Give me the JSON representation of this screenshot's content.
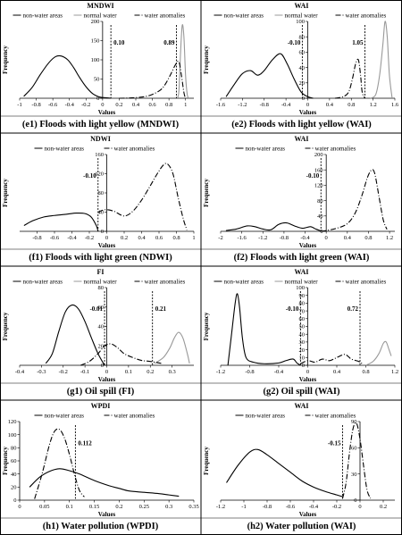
{
  "chart_data": [
    {
      "type": "line",
      "title": "MNDWI",
      "xlabel": "Values",
      "ylabel": "Frequency",
      "xlim": [
        -1,
        1.1
      ],
      "ylim": [
        0,
        200
      ],
      "xticks": [
        -1,
        -0.8,
        -0.6,
        -0.4,
        -0.2,
        0,
        0.2,
        0.4,
        0.6,
        0.8,
        1
      ],
      "yticks": [
        0,
        50,
        100,
        150,
        200
      ],
      "legend": [
        "non-water areas",
        "normal water",
        "water anomalies"
      ],
      "series": [
        {
          "name": "non-water areas",
          "style": "solid",
          "x": [
            -0.95,
            -0.85,
            -0.75,
            -0.65,
            -0.57,
            -0.5,
            -0.42,
            -0.35,
            -0.28,
            -0.2,
            -0.12,
            -0.05,
            0,
            0.05,
            0.1
          ],
          "y": [
            5,
            28,
            62,
            92,
            108,
            110,
            100,
            80,
            55,
            30,
            12,
            4,
            2,
            1,
            0
          ]
        },
        {
          "name": "normal water",
          "style": "solid",
          "color": "#999999",
          "x": [
            0.9,
            0.92,
            0.94,
            0.96,
            0.98,
            1.0,
            1.02,
            1.04
          ],
          "y": [
            0,
            20,
            120,
            190,
            160,
            60,
            10,
            0
          ]
        },
        {
          "name": "water anomalies",
          "style": "dashdot",
          "x": [
            0.2,
            0.35,
            0.5,
            0.6,
            0.7,
            0.76,
            0.82,
            0.88,
            0.92,
            0.95,
            0.98,
            1.0
          ],
          "y": [
            0,
            1,
            4,
            10,
            22,
            38,
            62,
            88,
            95,
            60,
            15,
            0
          ]
        }
      ],
      "annotations": [
        {
          "text": "0.10",
          "x": 0.1,
          "side": "right"
        },
        {
          "text": "0.89",
          "x": 0.89,
          "side": "left"
        }
      ],
      "caption": "(e1) Floods with light yellow (MNDWI)"
    },
    {
      "type": "line",
      "title": "WAI",
      "xlabel": "Values",
      "ylabel": "Frequency",
      "xlim": [
        -1.6,
        1.6
      ],
      "ylim": [
        0,
        100
      ],
      "xticks": [
        -1.6,
        -1.2,
        -0.8,
        -0.4,
        0,
        0.4,
        0.8,
        1.2,
        1.6
      ],
      "yticks": [
        0,
        20,
        40,
        60,
        80,
        100
      ],
      "legend": [
        "non-water areas",
        "normal water",
        "water anomalies"
      ],
      "series": [
        {
          "name": "non-water areas",
          "style": "solid",
          "x": [
            -1.5,
            -1.35,
            -1.2,
            -1.05,
            -0.92,
            -0.8,
            -0.65,
            -0.5,
            -0.38,
            -0.25,
            -0.12,
            0,
            0.1
          ],
          "y": [
            2,
            18,
            32,
            36,
            30,
            36,
            50,
            58,
            45,
            25,
            8,
            2,
            0
          ]
        },
        {
          "name": "normal water",
          "style": "solid",
          "color": "#999999",
          "x": [
            1.15,
            1.25,
            1.32,
            1.38,
            1.42,
            1.46,
            1.5,
            1.55
          ],
          "y": [
            0,
            5,
            30,
            70,
            100,
            80,
            30,
            0
          ]
        },
        {
          "name": "water anomalies",
          "style": "dashdot",
          "x": [
            0.5,
            0.65,
            0.75,
            0.82,
            0.88,
            0.93,
            0.97,
            1.0,
            1.05
          ],
          "y": [
            0,
            2,
            8,
            25,
            45,
            50,
            30,
            8,
            0
          ]
        }
      ],
      "annotations": [
        {
          "text": "-0.10",
          "x": -0.1,
          "side": "left"
        },
        {
          "text": "1.05",
          "x": 1.05,
          "side": "left"
        }
      ],
      "caption": "(e2) Floods with light yellow (WAI)"
    },
    {
      "type": "line",
      "title": "NDWI",
      "xlabel": "Values",
      "ylabel": "Frequency",
      "xlim": [
        -1,
        1
      ],
      "ylim": [
        0,
        160
      ],
      "xticks": [
        -0.8,
        -0.6,
        -0.4,
        -0.2,
        0,
        0.2,
        0.4,
        0.6,
        0.8,
        1
      ],
      "yticks": [
        0,
        40,
        80,
        120,
        160
      ],
      "legend": [
        "non-water areas",
        "water anomalies"
      ],
      "series": [
        {
          "name": "non-water areas",
          "style": "solid",
          "x": [
            -0.95,
            -0.85,
            -0.72,
            -0.6,
            -0.45,
            -0.35,
            -0.25,
            -0.18,
            -0.12,
            -0.1
          ],
          "y": [
            12,
            22,
            30,
            33,
            36,
            38,
            37,
            30,
            12,
            0
          ]
        },
        {
          "name": "water anomalies",
          "style": "dashdot",
          "x": [
            -0.1,
            -0.02,
            0.08,
            0.2,
            0.3,
            0.4,
            0.5,
            0.58,
            0.65,
            0.7,
            0.76,
            0.82,
            0.88,
            0.92
          ],
          "y": [
            40,
            45,
            42,
            32,
            42,
            65,
            95,
            120,
            138,
            140,
            120,
            70,
            25,
            3
          ]
        }
      ],
      "annotations": [
        {
          "text": "-0.10",
          "x": -0.1,
          "side": "left"
        }
      ],
      "caption": "(f1) Floods with light green (NDWI)"
    },
    {
      "type": "line",
      "title": "WAI",
      "xlabel": "Values",
      "ylabel": "Frequency",
      "xlim": [
        -2,
        1.3
      ],
      "ylim": [
        0,
        200
      ],
      "xticks": [
        -2,
        -1.6,
        -1.2,
        -0.8,
        -0.4,
        0,
        0.4,
        0.8,
        1.2
      ],
      "yticks": [
        0,
        40,
        80,
        120,
        160,
        200
      ],
      "legend": [
        "non-water areas",
        "water anomalies"
      ],
      "series": [
        {
          "name": "non-water areas",
          "style": "solid",
          "x": [
            -1.9,
            -1.7,
            -1.5,
            -1.35,
            -1.2,
            -1.05,
            -0.9,
            -0.75,
            -0.6,
            -0.45,
            -0.3,
            -0.2,
            -0.12,
            -0.1
          ],
          "y": [
            2,
            6,
            14,
            12,
            6,
            4,
            18,
            22,
            14,
            8,
            12,
            6,
            2,
            0
          ]
        },
        {
          "name": "water anomalies",
          "style": "dashdot",
          "x": [
            -0.1,
            0.0,
            0.2,
            0.4,
            0.55,
            0.68,
            0.78,
            0.86,
            0.92,
            1.0,
            1.08,
            1.15
          ],
          "y": [
            0,
            2,
            8,
            20,
            48,
            95,
            140,
            160,
            150,
            90,
            30,
            5
          ]
        }
      ],
      "annotations": [
        {
          "text": "-0.10",
          "x": -0.1,
          "side": "left"
        }
      ],
      "caption": "(f2) Floods with light green (WAI)"
    },
    {
      "type": "line",
      "title": "FI",
      "xlabel": "Values",
      "ylabel": "Frequency",
      "xlim": [
        -0.4,
        0.4
      ],
      "ylim": [
        0,
        80
      ],
      "xticks": [
        -0.4,
        -0.3,
        -0.2,
        -0.1,
        0,
        0.1,
        0.2,
        0.3
      ],
      "yticks": [
        0,
        20,
        40,
        60,
        80
      ],
      "legend": [
        "non-water areas",
        "normal water",
        "water anomalies"
      ],
      "series": [
        {
          "name": "non-water areas",
          "style": "solid",
          "x": [
            -0.28,
            -0.25,
            -0.22,
            -0.19,
            -0.16,
            -0.13,
            -0.1,
            -0.07,
            -0.04,
            -0.01
          ],
          "y": [
            2,
            12,
            35,
            55,
            62,
            58,
            45,
            28,
            12,
            0
          ]
        },
        {
          "name": "normal water",
          "style": "solid",
          "color": "#999999",
          "x": [
            0.22,
            0.26,
            0.29,
            0.31,
            0.33,
            0.35,
            0.37,
            0.38
          ],
          "y": [
            2,
            8,
            18,
            28,
            34,
            28,
            12,
            2
          ]
        },
        {
          "name": "water anomalies",
          "style": "dashdot",
          "x": [
            -0.12,
            -0.08,
            -0.04,
            -0.01,
            0.02,
            0.05,
            0.08,
            0.12,
            0.16,
            0.2,
            0.25
          ],
          "y": [
            0,
            4,
            12,
            20,
            22,
            18,
            12,
            8,
            5,
            4,
            2
          ]
        }
      ],
      "annotations": [
        {
          "text": "-0.01",
          "x": -0.01,
          "side": "left"
        },
        {
          "text": "0.21",
          "x": 0.21,
          "side": "right"
        }
      ],
      "caption": "(g1) Oil spill (FI)"
    },
    {
      "type": "line",
      "title": "WAI",
      "xlabel": "Values",
      "ylabel": "Frequency",
      "xlim": [
        -1.2,
        1.2
      ],
      "ylim": [
        0,
        100
      ],
      "xticks": [
        -1.2,
        -0.8,
        -0.4,
        0,
        0.4,
        0.8,
        1.2
      ],
      "yticks": [
        0,
        10,
        20,
        30,
        40,
        50,
        60,
        70,
        80,
        90,
        100
      ],
      "legend": [
        "non-water areas",
        "normal water",
        "water anomalies"
      ],
      "series": [
        {
          "name": "non-water areas",
          "style": "solid",
          "x": [
            -1.1,
            -1.05,
            -1.0,
            -0.97,
            -0.94,
            -0.9,
            -0.85,
            -0.75,
            -0.6,
            -0.4,
            -0.3,
            -0.2,
            -0.15,
            -0.1
          ],
          "y": [
            0,
            40,
            80,
            92,
            75,
            35,
            10,
            4,
            2,
            3,
            6,
            8,
            3,
            0
          ]
        },
        {
          "name": "normal water",
          "style": "solid",
          "color": "#999999",
          "x": [
            0.8,
            0.9,
            0.98,
            1.04,
            1.08,
            1.12,
            1.15
          ],
          "y": [
            0,
            5,
            15,
            28,
            30,
            20,
            12
          ]
        },
        {
          "name": "water anomalies",
          "style": "dashdot",
          "x": [
            -0.1,
            0.0,
            0.1,
            0.2,
            0.3,
            0.4,
            0.5,
            0.55,
            0.6,
            0.7,
            0.75
          ],
          "y": [
            2,
            6,
            4,
            8,
            6,
            10,
            14,
            12,
            8,
            5,
            2
          ]
        }
      ],
      "annotations": [
        {
          "text": "-0.10",
          "x": -0.1,
          "side": "left"
        },
        {
          "text": "0.72",
          "x": 0.72,
          "side": "left"
        }
      ],
      "caption": "(g2) Oil spill (WAI)"
    },
    {
      "type": "line",
      "title": "WPDI",
      "xlabel": "Values",
      "ylabel": "Frequency",
      "xlim": [
        0,
        0.35
      ],
      "ylim": [
        0,
        120
      ],
      "xticks": [
        0,
        0.05,
        0.1,
        0.15,
        0.2,
        0.25,
        0.3,
        0.35
      ],
      "yticks": [
        0,
        20,
        40,
        60,
        80,
        100,
        120
      ],
      "legend": [
        "non-water areas",
        "water anomalies"
      ],
      "series": [
        {
          "name": "non-water areas",
          "style": "solid",
          "x": [
            0.02,
            0.04,
            0.06,
            0.08,
            0.1,
            0.12,
            0.15,
            0.18,
            0.2,
            0.22,
            0.25,
            0.28,
            0.3,
            0.32
          ],
          "y": [
            20,
            35,
            44,
            48,
            45,
            40,
            30,
            22,
            18,
            14,
            12,
            10,
            8,
            6
          ]
        },
        {
          "name": "water anomalies",
          "style": "dashdot",
          "x": [
            0.03,
            0.045,
            0.06,
            0.07,
            0.08,
            0.09,
            0.1,
            0.11,
            0.12,
            0.13
          ],
          "y": [
            2,
            40,
            85,
            105,
            108,
            95,
            70,
            40,
            15,
            5
          ]
        }
      ],
      "annotations": [
        {
          "text": "0.112",
          "x": 0.112,
          "side": "right"
        }
      ],
      "caption": "(h1) Water pollution (WPDI)"
    },
    {
      "type": "line",
      "title": "WAI",
      "xlabel": "Values",
      "ylabel": "Frequency",
      "xlim": [
        -1.2,
        0.3
      ],
      "ylim": [
        0,
        90
      ],
      "xticks": [
        -1.2,
        -1,
        -0.8,
        -0.6,
        -0.4,
        -0.2,
        0,
        0.2
      ],
      "yticks": [
        0,
        30,
        60,
        90
      ],
      "legend": [
        "non-water areas",
        "water anomalies"
      ],
      "series": [
        {
          "name": "non-water areas",
          "style": "solid",
          "x": [
            -1.15,
            -1.05,
            -0.95,
            -0.88,
            -0.8,
            -0.7,
            -0.6,
            -0.5,
            -0.4,
            -0.3,
            -0.2,
            -0.15
          ],
          "y": [
            20,
            40,
            55,
            58,
            52,
            42,
            32,
            22,
            15,
            10,
            6,
            4
          ]
        },
        {
          "name": "water anomalies",
          "style": "dashdot",
          "x": [
            -0.15,
            -0.12,
            -0.09,
            -0.06,
            -0.03,
            0,
            0.03,
            0.06,
            0.09
          ],
          "y": [
            2,
            20,
            55,
            82,
            88,
            70,
            40,
            12,
            2
          ]
        }
      ],
      "annotations": [
        {
          "text": "-0.15",
          "x": -0.15,
          "side": "left"
        }
      ],
      "caption": "(h2) Water pollution (WAI)"
    }
  ]
}
